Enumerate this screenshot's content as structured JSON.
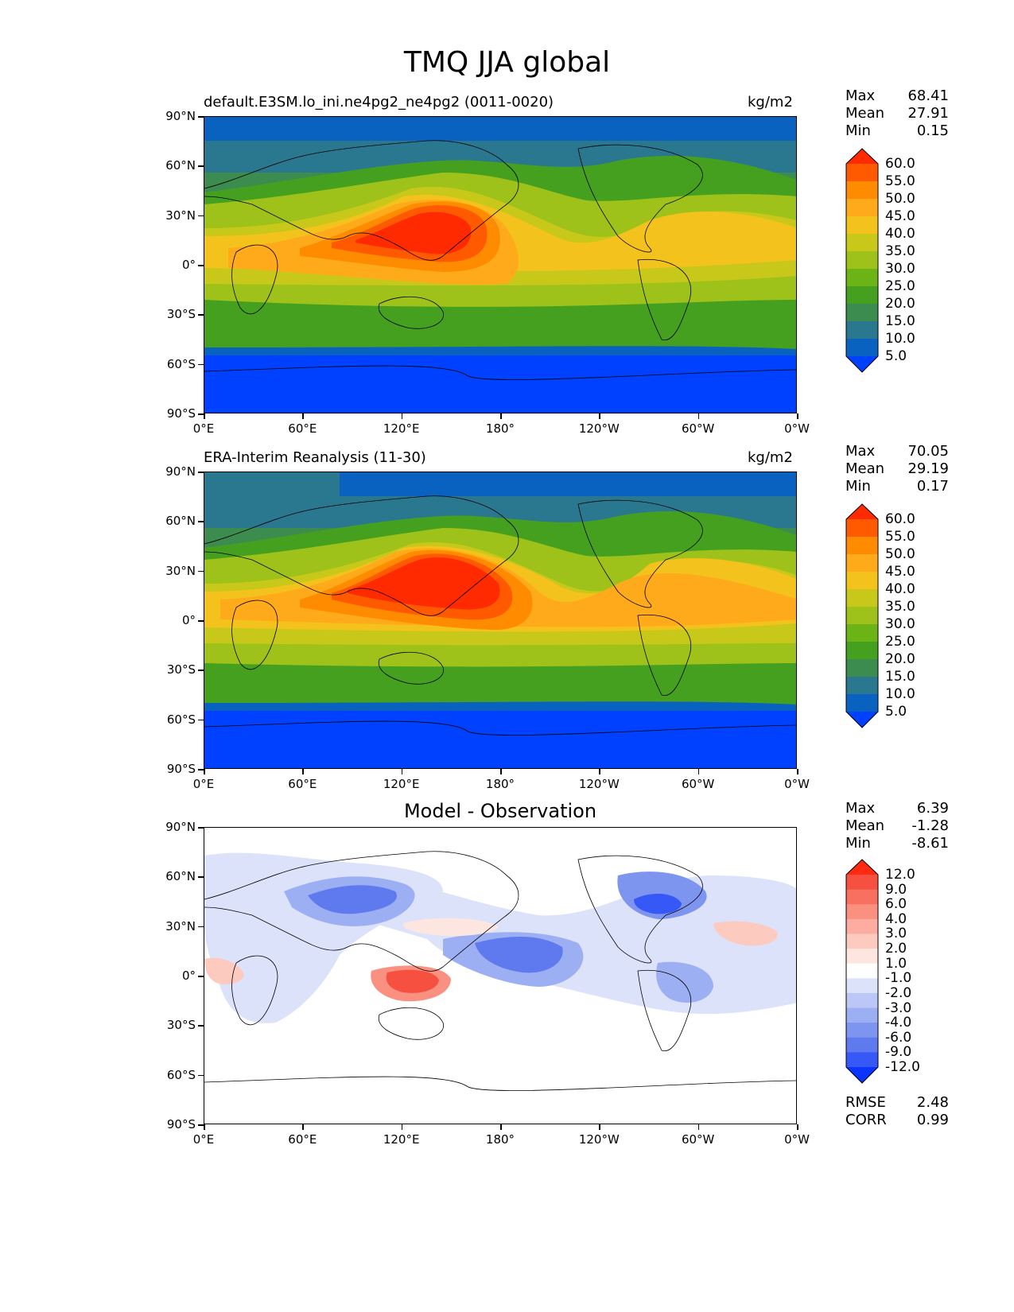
{
  "figure": {
    "title": "TMQ JJA global"
  },
  "axes": {
    "y_labels": [
      "90°N",
      "60°N",
      "30°N",
      "0°",
      "30°S",
      "60°S",
      "90°S"
    ],
    "x_labels": [
      "0°E",
      "60°E",
      "120°E",
      "180°",
      "120°W",
      "60°W",
      "0°W"
    ]
  },
  "panels": [
    {
      "title_left": "default.E3SM.lo_ini.ne4pg2_ne4pg2 (0011-0020)",
      "title_right": "kg/m2",
      "stats": [
        {
          "label": "Max",
          "value": "68.41"
        },
        {
          "label": "Mean",
          "value": "27.91"
        },
        {
          "label": "Min",
          "value": "0.15"
        }
      ],
      "colorbar_labels": [
        "60.0",
        "55.0",
        "50.0",
        "45.0",
        "40.0",
        "35.0",
        "30.0",
        "25.0",
        "20.0",
        "15.0",
        "10.0",
        "5.0"
      ],
      "colors": [
        "#ff2a00",
        "#ff5a00",
        "#ff8c00",
        "#ffaa1a",
        "#f4c21c",
        "#c8c81a",
        "#9fc21a",
        "#6cb416",
        "#46a020",
        "#3c8c50",
        "#2a7890",
        "#0a62c0",
        "#0040ff"
      ]
    },
    {
      "title_left": "ERA-Interim Reanalysis (11-30)",
      "title_right": "kg/m2",
      "stats": [
        {
          "label": "Max",
          "value": "70.05"
        },
        {
          "label": "Mean",
          "value": "29.19"
        },
        {
          "label": "Min",
          "value": "0.17"
        }
      ],
      "colorbar_labels": [
        "60.0",
        "55.0",
        "50.0",
        "45.0",
        "40.0",
        "35.0",
        "30.0",
        "25.0",
        "20.0",
        "15.0",
        "10.0",
        "5.0"
      ],
      "colors": [
        "#ff2a00",
        "#ff5a00",
        "#ff8c00",
        "#ffaa1a",
        "#f4c21c",
        "#c8c81a",
        "#9fc21a",
        "#6cb416",
        "#46a020",
        "#3c8c50",
        "#2a7890",
        "#0a62c0",
        "#0040ff"
      ]
    },
    {
      "title_center": "Model - Observation",
      "stats": [
        {
          "label": "Max",
          "value": "6.39"
        },
        {
          "label": "Mean",
          "value": "-1.28"
        },
        {
          "label": "Min",
          "value": "-8.61"
        }
      ],
      "colorbar_labels": [
        "12.0",
        "9.0",
        "6.0",
        "4.0",
        "3.0",
        "2.0",
        "1.0",
        "-1.0",
        "-2.0",
        "-3.0",
        "-4.0",
        "-6.0",
        "-9.0",
        "-12.0"
      ],
      "colors": [
        "#ff2a10",
        "#f55040",
        "#f87060",
        "#fa9080",
        "#fcaca0",
        "#fdcac0",
        "#fee6e0",
        "#ffffff",
        "#dde2fb",
        "#bcc7f7",
        "#9daff3",
        "#7d95ef",
        "#5f7aee",
        "#3558f6",
        "#0a34ff"
      ],
      "bottom_stats": [
        {
          "label": "RMSE",
          "value": "2.48"
        },
        {
          "label": "CORR",
          "value": "0.99"
        }
      ]
    }
  ]
}
